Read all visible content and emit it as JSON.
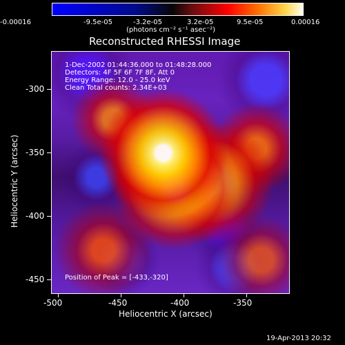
{
  "colorbar": {
    "labels": [
      "-0.00016",
      "-9.5e-05",
      "-3.2e-05",
      "3.2e-05",
      "9.5e-05",
      "0.00016"
    ],
    "unit": "(photons cm⁻² s⁻¹ asec⁻²)"
  },
  "chart_data": {
    "type": "heatmap",
    "title": "Reconstructed RHESSI Image",
    "xlabel": "Heliocentric X (arcsec)",
    "ylabel": "Heliocentric Y (arcsec)",
    "xlim": [
      -505,
      -312
    ],
    "ylim": [
      -462,
      -275
    ],
    "xticks": [
      -500,
      -450,
      -400,
      -350
    ],
    "yticks": [
      -300,
      -350,
      -400,
      -450
    ],
    "overlay_lines": [
      "1-Dec-2002 01:44:36.000 to 01:48:28.000",
      "Detectors: 4F 5F 6F 7F 8F, Att 0",
      "Energy Range: 12.0 - 25.0 keV",
      "Clean     Total counts: 2.34E+03"
    ],
    "peak_text": "Position of Peak = [-433,-320]",
    "footer_date": "19-Apr-2013 20:32"
  }
}
